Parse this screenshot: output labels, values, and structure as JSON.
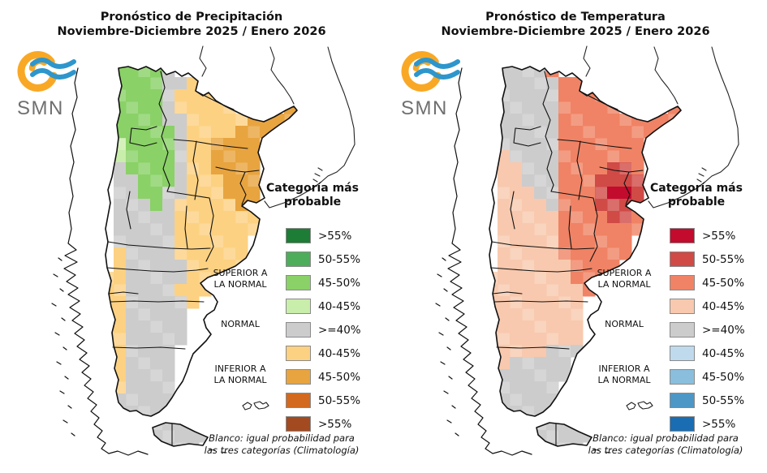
{
  "left_panel": {
    "title_line1": "Pronóstico de Precipitación",
    "title_line2": "Noviembre-Diciembre 2025 / Enero 2026",
    "logo_text": "SMN",
    "legend": {
      "header_line1": "Categoría más",
      "header_line2": "probable",
      "entries": [
        {
          "label": ">55%",
          "color": "#1d7c35"
        },
        {
          "label": "50-55%",
          "color": "#4ead5b"
        },
        {
          "label": "45-50%",
          "color": "#8ad167"
        },
        {
          "label": "40-45%",
          "color": "#c9edaa"
        },
        {
          "label": ">=40%",
          "color": "#cccccc"
        },
        {
          "label": "40-45%",
          "color": "#fcd182"
        },
        {
          "label": "45-50%",
          "color": "#e8a43f"
        },
        {
          "label": "50-55%",
          "color": "#d2691e"
        },
        {
          "label": ">55%",
          "color": "#a34a21"
        }
      ],
      "side_superior_line1": "SUPERIOR A",
      "side_superior_line2": "LA NORMAL",
      "side_normal": "NORMAL",
      "side_inferior_line1": "INFERIOR A",
      "side_inferior_line2": "LA NORMAL",
      "footnote_line1": "Blanco: igual probabilidad para",
      "footnote_line2": "las tres categorías (Climatología)"
    },
    "map": {
      "palette": {
        "C": "#8ad167",
        "D": "#c9edaa",
        "N": "#cccccc",
        "E": "#fcd182",
        "F": "#e8a43f"
      },
      "grid": [
        "..CCCCN..........",
        "..CCCCNNEE.......",
        "..CCCCNEEEE......",
        "..CCCCNEEEEE....F",
        "..CCCCNNEEEEEFFFF",
        "..CCCCCNEEEEFFFF.",
        "..DCCCCNEEFFFF...",
        "..DCCCCNEEFFFF...",
        "..NCCCCNEEFFFF...",
        "..NNCCCNEEEFFF...",
        "..NNCCNNEEEFFF...",
        "..NNNCNEEEEEFF...",
        "..NNNNNEEEEEEE...",
        "..NNNNNEEEEEEE...",
        "..NNNNNEEEEEE....",
        "..ENNNNEEEEEE....",
        "..ENNNNNEEEEE....",
        ".EENNNNNEEEE.....",
        ".EENNNNEEE.......",
        ".EENNNNNE........",
        ".EENNNNN.........",
        ".EENNNNN.........",
        ".EENNNNN.........",
        ".EENNNN..........",
        ".EENNNN..........",
        ".EENNNN..........",
        "..ENNNN..........",
        "..NNNNN..........",
        "..NNNNN..........",
        ".....NNNN........",
        ".....NNNNN.......",
        ".....NNNN........"
      ]
    }
  },
  "right_panel": {
    "title_line1": "Pronóstico de Temperatura",
    "title_line2": "Noviembre-Diciembre 2025 / Enero 2026",
    "logo_text": "SMN",
    "legend": {
      "header_line1": "Categoría más",
      "header_line2": "probable",
      "entries": [
        {
          "label": ">55%",
          "color": "#c30b2e"
        },
        {
          "label": "50-55%",
          "color": "#d04a46"
        },
        {
          "label": "45-50%",
          "color": "#f08365"
        },
        {
          "label": "40-45%",
          "color": "#f8c9ae"
        },
        {
          "label": ">=40%",
          "color": "#cccccc"
        },
        {
          "label": "40-45%",
          "color": "#bfdaec"
        },
        {
          "label": "45-50%",
          "color": "#8abedc"
        },
        {
          "label": "50-55%",
          "color": "#4c97c6"
        },
        {
          "label": ">55%",
          "color": "#1a6db3"
        }
      ],
      "side_superior_line1": "SUPERIOR A",
      "side_superior_line2": "LA NORMAL",
      "side_normal": "NORMAL",
      "side_inferior_line1": "INFERIOR A",
      "side_inferior_line2": "LA NORMAL",
      "footnote_line1": "Blanco: igual probabilidad para",
      "footnote_line2": "las tres categorías (Climatología)"
    },
    "map": {
      "palette": {
        "A": "#c30b2e",
        "B": "#d04a46",
        "C": "#f08365",
        "D": "#f8c9ae",
        "N": "#cccccc"
      },
      "grid": [
        "..NNNNC..........",
        "..NNNNNCCC.......",
        "..NNNNNCCCC......",
        "..NNNNNCCCCC....C",
        "..NNNNNCCCCCCCCCC",
        "..NNNNNCCCCCCCCC.",
        "..NNNNNCCCCCCC...",
        "..DNNNNCCCCCCC...",
        "..DDNNNCCCCBBC...",
        "..DDNNNCCCBBBB...",
        "..DDDNNCCCBAAB...",
        "..DDDDNCCCBBBB...",
        "..DDDDDCCCCBBC...",
        "..DDDDDCCCCCCC...",
        "..DDDDDCCCCCC....",
        "..DDDDDCCCCCC....",
        "..DDDDDDCCCC.....",
        ".DDDDDDDCCC......",
        ".DDDDDDDDC.......",
        ".DDDDDDDD........",
        ".DDDDDDDD........",
        ".DDDDDDDD........",
        ".DDDDDDDD........",
        ".DDDDDNNN........",
        ".DDNNNNN.........",
        ".NNNNNNN.........",
        "..NNNNN..........",
        "..NNNNN..........",
        "..NNNNN..........",
        ".....NNNN........",
        ".....NNNNN.......",
        ".....NNNN........"
      ]
    }
  }
}
